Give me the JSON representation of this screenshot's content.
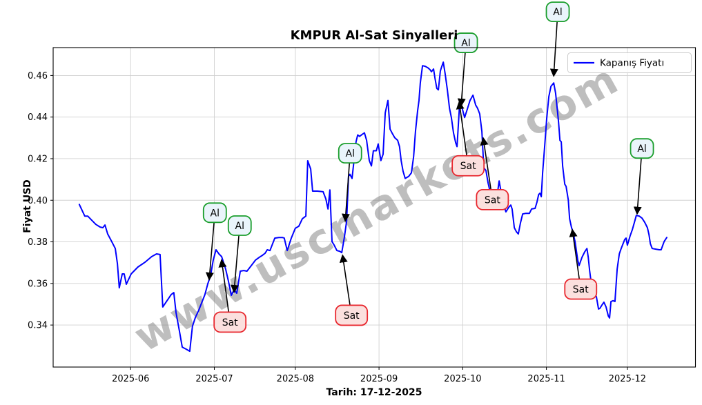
{
  "figure": {
    "title": "KMPUR Al-Sat Sinyalleri",
    "xlabel": "Tarih: 17-12-2025",
    "ylabel": "Fiyat USD",
    "watermark": "www.uscmarkets.com",
    "legend": {
      "label": "Kapanış Fiyatı"
    }
  },
  "chart_data": {
    "type": "line",
    "title": "KMPUR Al-Sat Sinyalleri",
    "xlabel": "Tarih: 17-12-2025",
    "ylabel": "Fiyat USD",
    "grid": true,
    "legend_position": "upper right",
    "series_name": "Kapanış Fiyatı",
    "start_date": "2025-05-13",
    "x_unit": "days_since_start_date",
    "xlim_days": [
      -9.7,
      228.2
    ],
    "ylim": [
      0.3198,
      0.4734
    ],
    "y_ticks": [
      0.34,
      0.36,
      0.38,
      0.4,
      0.42,
      0.44,
      0.46
    ],
    "x_ticks": [
      {
        "day": 19,
        "label": "2025-06"
      },
      {
        "day": 50,
        "label": "2025-07"
      },
      {
        "day": 80,
        "label": "2025-08"
      },
      {
        "day": 111,
        "label": "2025-09"
      },
      {
        "day": 142,
        "label": "2025-10"
      },
      {
        "day": 173,
        "label": "2025-11"
      },
      {
        "day": 203,
        "label": "2025-12"
      }
    ],
    "colors": {
      "line": "#0000ff",
      "buy_border": "#1a9e2c",
      "buy_fill": "#eaf4fb",
      "sell_border": "#e8262d",
      "sell_fill": "#fbe0de",
      "grid": "#d0d0d0",
      "frame": "#000000",
      "arrow": "#000000"
    },
    "points": [
      [
        0,
        0.398
      ],
      [
        2,
        0.3924
      ],
      [
        3.1,
        0.3924
      ],
      [
        4.6,
        0.3904
      ],
      [
        6.1,
        0.3884
      ],
      [
        7.7,
        0.3871
      ],
      [
        8.7,
        0.3868
      ],
      [
        9.5,
        0.3881
      ],
      [
        10.5,
        0.3838
      ],
      [
        12,
        0.3801
      ],
      [
        13.3,
        0.3768
      ],
      [
        14.1,
        0.3695
      ],
      [
        14.8,
        0.3579
      ],
      [
        15.9,
        0.3646
      ],
      [
        16.6,
        0.3646
      ],
      [
        17.4,
        0.3596
      ],
      [
        19.2,
        0.3646
      ],
      [
        21.7,
        0.3679
      ],
      [
        24.3,
        0.3702
      ],
      [
        26.8,
        0.3729
      ],
      [
        28.6,
        0.3742
      ],
      [
        29.9,
        0.3739
      ],
      [
        30.9,
        0.3487
      ],
      [
        34,
        0.3546
      ],
      [
        35,
        0.3556
      ],
      [
        35.8,
        0.346
      ],
      [
        37.1,
        0.337
      ],
      [
        38.1,
        0.3294
      ],
      [
        39.6,
        0.3284
      ],
      [
        40.9,
        0.3274
      ],
      [
        41.9,
        0.3394
      ],
      [
        43,
        0.3437
      ],
      [
        44.2,
        0.347
      ],
      [
        45.5,
        0.3513
      ],
      [
        46.5,
        0.3546
      ],
      [
        47.6,
        0.3599
      ],
      [
        48.6,
        0.3636
      ],
      [
        49.6,
        0.3712
      ],
      [
        50.6,
        0.3762
      ],
      [
        51.7,
        0.3742
      ],
      [
        52.7,
        0.3729
      ],
      [
        54.2,
        0.3669
      ],
      [
        55.2,
        0.3613
      ],
      [
        56.3,
        0.3543
      ],
      [
        57.3,
        0.357
      ],
      [
        58.3,
        0.3553
      ],
      [
        59.6,
        0.3659
      ],
      [
        60.9,
        0.3662
      ],
      [
        62.1,
        0.3659
      ],
      [
        63.7,
        0.3686
      ],
      [
        65.2,
        0.3712
      ],
      [
        66.7,
        0.3726
      ],
      [
        67.8,
        0.3735
      ],
      [
        68.8,
        0.3745
      ],
      [
        69.6,
        0.3762
      ],
      [
        70.6,
        0.3758
      ],
      [
        72.4,
        0.3818
      ],
      [
        73.9,
        0.3821
      ],
      [
        75.2,
        0.3821
      ],
      [
        75.9,
        0.3818
      ],
      [
        77,
        0.3758
      ],
      [
        78.5,
        0.3818
      ],
      [
        80,
        0.3865
      ],
      [
        81.3,
        0.3875
      ],
      [
        82.6,
        0.3911
      ],
      [
        83.9,
        0.3924
      ],
      [
        84.6,
        0.419
      ],
      [
        85.7,
        0.415
      ],
      [
        86.4,
        0.4044
      ],
      [
        88.2,
        0.4044
      ],
      [
        90.3,
        0.4041
      ],
      [
        91.3,
        0.4007
      ],
      [
        92.1,
        0.3958
      ],
      [
        92.8,
        0.405
      ],
      [
        93.6,
        0.3801
      ],
      [
        94.4,
        0.3784
      ],
      [
        95.4,
        0.3758
      ],
      [
        96.4,
        0.3755
      ],
      [
        97.2,
        0.3748
      ],
      [
        98.2,
        0.3824
      ],
      [
        99,
        0.3901
      ],
      [
        99.7,
        0.4115
      ],
      [
        100.2,
        0.4125
      ],
      [
        101,
        0.4105
      ],
      [
        101.8,
        0.4198
      ],
      [
        102.5,
        0.4281
      ],
      [
        103.1,
        0.4314
      ],
      [
        103.8,
        0.4307
      ],
      [
        104.8,
        0.4317
      ],
      [
        105.6,
        0.4324
      ],
      [
        106.4,
        0.4288
      ],
      [
        107.4,
        0.4191
      ],
      [
        108.2,
        0.4165
      ],
      [
        108.9,
        0.4238
      ],
      [
        110,
        0.4238
      ],
      [
        110.7,
        0.4271
      ],
      [
        111.7,
        0.4191
      ],
      [
        112.5,
        0.4221
      ],
      [
        113.3,
        0.442
      ],
      [
        114.3,
        0.448
      ],
      [
        115.1,
        0.4342
      ],
      [
        115.8,
        0.4324
      ],
      [
        116.8,
        0.4301
      ],
      [
        117.9,
        0.4288
      ],
      [
        118.6,
        0.4258
      ],
      [
        119.2,
        0.419
      ],
      [
        119.9,
        0.414
      ],
      [
        120.7,
        0.4105
      ],
      [
        122,
        0.4115
      ],
      [
        123,
        0.4132
      ],
      [
        123.8,
        0.4209
      ],
      [
        124.5,
        0.4331
      ],
      [
        125.3,
        0.443
      ],
      [
        125.8,
        0.448
      ],
      [
        126.3,
        0.4564
      ],
      [
        127.1,
        0.4647
      ],
      [
        128.1,
        0.4644
      ],
      [
        129.1,
        0.4637
      ],
      [
        129.9,
        0.4628
      ],
      [
        130.4,
        0.4618
      ],
      [
        131.2,
        0.4631
      ],
      [
        131.7,
        0.4588
      ],
      [
        132.4,
        0.4538
      ],
      [
        133,
        0.4531
      ],
      [
        133.7,
        0.4621
      ],
      [
        134.2,
        0.4641
      ],
      [
        134.8,
        0.4664
      ],
      [
        135.5,
        0.4608
      ],
      [
        136.3,
        0.4531
      ],
      [
        137.1,
        0.4442
      ],
      [
        137.8,
        0.4398
      ],
      [
        138.6,
        0.4324
      ],
      [
        139.4,
        0.4276
      ],
      [
        139.9,
        0.4258
      ],
      [
        140.9,
        0.447
      ],
      [
        141.7,
        0.4447
      ],
      [
        142.7,
        0.4398
      ],
      [
        143.7,
        0.4438
      ],
      [
        144.7,
        0.448
      ],
      [
        145.8,
        0.4505
      ],
      [
        146.8,
        0.4458
      ],
      [
        147.5,
        0.4442
      ],
      [
        148.3,
        0.4415
      ],
      [
        149.1,
        0.4331
      ],
      [
        149.8,
        0.4156
      ],
      [
        150.6,
        0.4143
      ],
      [
        151.4,
        0.4083
      ],
      [
        152.1,
        0.4044
      ],
      [
        152.9,
        0.4011
      ],
      [
        153.7,
        0.3994
      ],
      [
        154.7,
        0.4017
      ],
      [
        155.5,
        0.4093
      ],
      [
        156.2,
        0.4041
      ],
      [
        157,
        0.3984
      ],
      [
        158,
        0.3944
      ],
      [
        159.1,
        0.3967
      ],
      [
        159.8,
        0.3977
      ],
      [
        160.3,
        0.3958
      ],
      [
        161.1,
        0.3868
      ],
      [
        161.9,
        0.3848
      ],
      [
        162.6,
        0.3838
      ],
      [
        163.4,
        0.3891
      ],
      [
        164.2,
        0.3934
      ],
      [
        165.4,
        0.3937
      ],
      [
        166.7,
        0.3937
      ],
      [
        167.5,
        0.3958
      ],
      [
        168.8,
        0.3961
      ],
      [
        169.5,
        0.3991
      ],
      [
        170.1,
        0.4027
      ],
      [
        170.6,
        0.4034
      ],
      [
        171.1,
        0.4017
      ],
      [
        171.6,
        0.4132
      ],
      [
        172.4,
        0.4265
      ],
      [
        173.1,
        0.4392
      ],
      [
        173.9,
        0.4498
      ],
      [
        174.7,
        0.4548
      ],
      [
        175.7,
        0.4564
      ],
      [
        176.4,
        0.4515
      ],
      [
        177,
        0.4442
      ],
      [
        177.5,
        0.4375
      ],
      [
        178,
        0.4288
      ],
      [
        178.5,
        0.4281
      ],
      [
        179,
        0.4165
      ],
      [
        179.8,
        0.4077
      ],
      [
        180.3,
        0.4067
      ],
      [
        181.1,
        0.4001
      ],
      [
        181.6,
        0.3911
      ],
      [
        182.3,
        0.3868
      ],
      [
        182.8,
        0.3851
      ],
      [
        183.6,
        0.3801
      ],
      [
        184.6,
        0.3712
      ],
      [
        185.1,
        0.3686
      ],
      [
        186.2,
        0.3726
      ],
      [
        187.2,
        0.3752
      ],
      [
        188,
        0.3768
      ],
      [
        188.5,
        0.3726
      ],
      [
        189,
        0.3662
      ],
      [
        189.5,
        0.3613
      ],
      [
        190,
        0.361
      ],
      [
        191,
        0.3546
      ],
      [
        191.5,
        0.3536
      ],
      [
        192.3,
        0.3477
      ],
      [
        192.8,
        0.348
      ],
      [
        193.6,
        0.3497
      ],
      [
        194.3,
        0.351
      ],
      [
        195.1,
        0.3487
      ],
      [
        195.9,
        0.3444
      ],
      [
        196.4,
        0.3434
      ],
      [
        196.9,
        0.3513
      ],
      [
        197.7,
        0.3517
      ],
      [
        198.4,
        0.3513
      ],
      [
        199.2,
        0.3669
      ],
      [
        200,
        0.3742
      ],
      [
        200.7,
        0.3768
      ],
      [
        201.5,
        0.3795
      ],
      [
        202,
        0.3811
      ],
      [
        202.5,
        0.3818
      ],
      [
        203,
        0.3784
      ],
      [
        204,
        0.3828
      ],
      [
        204.8,
        0.3858
      ],
      [
        205.6,
        0.3894
      ],
      [
        206.3,
        0.3927
      ],
      [
        207.4,
        0.3924
      ],
      [
        208.4,
        0.3914
      ],
      [
        209.4,
        0.3894
      ],
      [
        210.4,
        0.3868
      ],
      [
        211,
        0.3835
      ],
      [
        211.5,
        0.3791
      ],
      [
        212.2,
        0.3768
      ],
      [
        213.5,
        0.3765
      ],
      [
        214.8,
        0.3762
      ],
      [
        215.5,
        0.3762
      ],
      [
        216.6,
        0.3801
      ],
      [
        217.6,
        0.3821
      ]
    ],
    "annotations": [
      {
        "label": "Al",
        "signal": "buy",
        "box_day": 50.2,
        "box_price": 0.394,
        "tip_day": 48.1,
        "tip_price": 0.3619
      },
      {
        "label": "Al",
        "signal": "buy",
        "box_day": 59.4,
        "box_price": 0.3878,
        "tip_day": 57.3,
        "tip_price": 0.3559
      },
      {
        "label": "Sat",
        "signal": "sell",
        "box_day": 55.8,
        "box_price": 0.3414,
        "tip_day": 52.7,
        "tip_price": 0.3712
      },
      {
        "label": "Al",
        "signal": "buy",
        "box_day": 100.3,
        "box_price": 0.4226,
        "tip_day": 98.5,
        "tip_price": 0.3901
      },
      {
        "label": "Sat",
        "signal": "sell",
        "box_day": 100.8,
        "box_price": 0.3447,
        "tip_day": 97.5,
        "tip_price": 0.3735
      },
      {
        "label": "Al",
        "signal": "buy",
        "box_day": 143.2,
        "box_price": 0.4757,
        "tip_day": 141.4,
        "tip_price": 0.4455
      },
      {
        "label": "Sat",
        "signal": "sell",
        "box_day": 144.0,
        "box_price": 0.4166,
        "tip_day": 140.7,
        "tip_price": 0.4472
      },
      {
        "label": "Sat",
        "signal": "sell",
        "box_day": 153.0,
        "box_price": 0.4003,
        "tip_day": 149.6,
        "tip_price": 0.4299
      },
      {
        "label": "Al",
        "signal": "buy",
        "box_day": 177.2,
        "box_price": 0.4906,
        "tip_day": 175.7,
        "tip_price": 0.4598
      },
      {
        "label": "Sat",
        "signal": "sell",
        "box_day": 185.7,
        "box_price": 0.3573,
        "tip_day": 182.6,
        "tip_price": 0.3858
      },
      {
        "label": "Al",
        "signal": "buy",
        "box_day": 208.4,
        "box_price": 0.4249,
        "tip_day": 206.6,
        "tip_price": 0.3935
      }
    ]
  }
}
